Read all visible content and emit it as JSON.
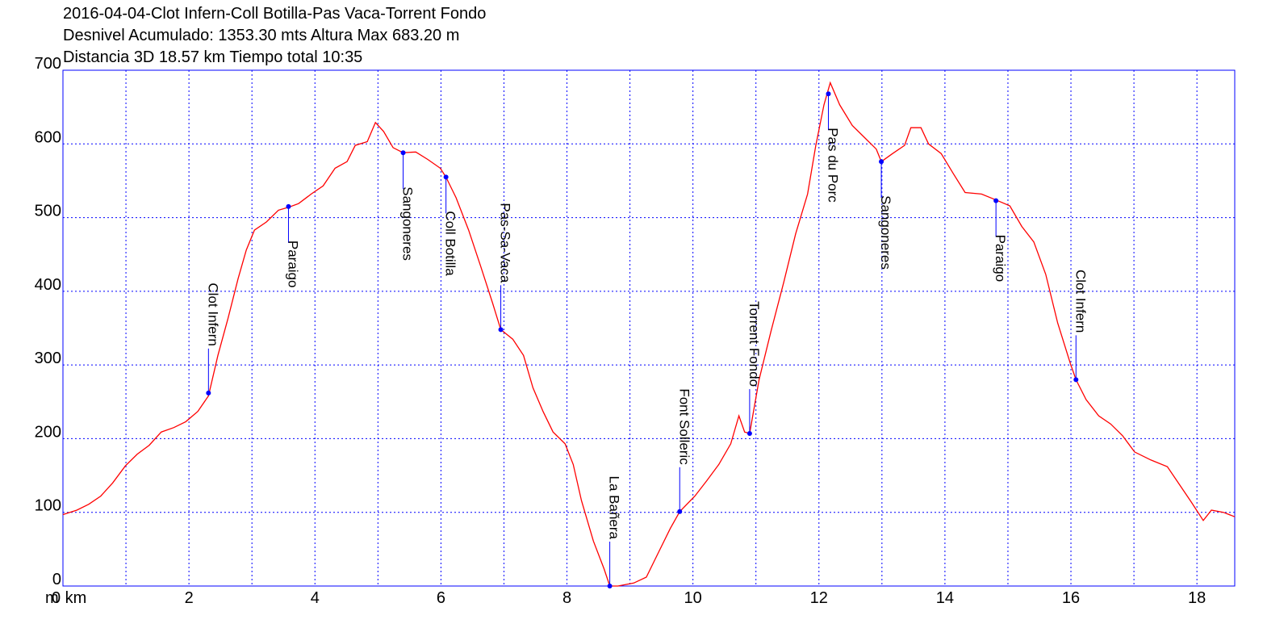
{
  "chart_data": {
    "type": "line",
    "title_lines": [
      "2016-04-04-Clot Infern-Coll Botilla-Pas Vaca-Torrent Fondo",
      "Desnivel Acumulado: 1353.30 mts  Altura Max 683.20 m",
      "Distancia 3D 18.57 km  Tiempo total 10:35"
    ],
    "y_unit": "m",
    "x": [
      0,
      0.22,
      0.41,
      0.6,
      0.79,
      0.99,
      1.18,
      1.37,
      1.56,
      1.76,
      1.95,
      2.14,
      2.31,
      2.46,
      2.62,
      2.78,
      2.91,
      3.04,
      3.23,
      3.42,
      3.58,
      3.74,
      3.94,
      4.13,
      4.32,
      4.51,
      4.64,
      4.83,
      4.96,
      5.09,
      5.24,
      5.4,
      5.6,
      5.79,
      5.99,
      6.08,
      6.24,
      6.44,
      6.63,
      6.82,
      6.95,
      7.14,
      7.31,
      7.46,
      7.62,
      7.78,
      7.97,
      8.1,
      8.23,
      8.42,
      8.59,
      8.68,
      8.81,
      9.06,
      9.26,
      9.45,
      9.64,
      9.79,
      10.03,
      10.22,
      10.41,
      10.6,
      10.73,
      10.82,
      10.9,
      11.05,
      11.24,
      11.44,
      11.63,
      11.82,
      11.95,
      12.08,
      12.18,
      12.33,
      12.53,
      12.72,
      12.91,
      12.99,
      13.17,
      13.36,
      13.46,
      13.62,
      13.74,
      13.94,
      14.13,
      14.32,
      14.58,
      14.81,
      15.03,
      15.22,
      15.41,
      15.6,
      15.79,
      15.99,
      16.08,
      16.24,
      16.44,
      16.63,
      16.82,
      17.01,
      17.27,
      17.53,
      17.72,
      17.91,
      18.1,
      18.23,
      18.42,
      18.6
    ],
    "series": [
      {
        "color": "#ff0000",
        "values": [
          97,
          103,
          111,
          122,
          140,
          163,
          179,
          191,
          209,
          215,
          223,
          237,
          258,
          313,
          363,
          417,
          456,
          483,
          494,
          510,
          514,
          519,
          532,
          543,
          567,
          576,
          598,
          603,
          629,
          617,
          595,
          588,
          589,
          579,
          567,
          555,
          527,
          483,
          434,
          384,
          348,
          335,
          313,
          269,
          237,
          209,
          193,
          165,
          116,
          61,
          23,
          0,
          0,
          4,
          12,
          45,
          78,
          101,
          122,
          143,
          165,
          193,
          231,
          209,
          207,
          280,
          346,
          412,
          478,
          532,
          598,
          653,
          683,
          653,
          625,
          609,
          593,
          576,
          587,
          598,
          622,
          622,
          600,
          587,
          560,
          534,
          532,
          524,
          516,
          488,
          467,
          423,
          357,
          302,
          280,
          253,
          231,
          220,
          204,
          182,
          171,
          162,
          138,
          114,
          89,
          103,
          100,
          94
        ]
      }
    ],
    "annotations_color": "#0000ff",
    "annotations": [
      {
        "label": "Clot Infern",
        "x": 2.31,
        "y": 262
      },
      {
        "label": "Paraigo",
        "x": 3.58,
        "y": 515
      },
      {
        "label": "Sangoneres",
        "x": 5.4,
        "y": 588
      },
      {
        "label": "Coll Botilla",
        "x": 6.08,
        "y": 555
      },
      {
        "label": "Pas-Sa-Vaca",
        "x": 6.95,
        "y": 348
      },
      {
        "label": "La Bañera",
        "x": 8.68,
        "y": 0
      },
      {
        "label": "Font Solleric",
        "x": 9.79,
        "y": 101
      },
      {
        "label": "Torrent Fondo",
        "x": 10.9,
        "y": 207
      },
      {
        "label": "Pas du Porc",
        "x": 12.15,
        "y": 668
      },
      {
        "label": "Sangoneres",
        "x": 12.99,
        "y": 576
      },
      {
        "label": "Paraigo",
        "x": 14.81,
        "y": 523
      },
      {
        "label": "Clot Infern",
        "x": 16.08,
        "y": 280
      }
    ],
    "xlim": [
      0,
      18.6
    ],
    "ylim": [
      0,
      700
    ],
    "xticks": [
      {
        "value": 0,
        "label": "0 km"
      },
      2,
      4,
      6,
      8,
      10,
      12,
      14,
      16,
      18
    ],
    "xgrid": [
      1,
      2,
      3,
      4,
      5,
      6,
      7,
      8,
      9,
      10,
      11,
      12,
      13,
      14,
      15,
      16,
      17,
      18
    ],
    "yticks": [
      0,
      100,
      200,
      300,
      400,
      500,
      600,
      700
    ],
    "grid": true,
    "grid_color": "#0000ff",
    "frame_color": "#0000ff"
  }
}
